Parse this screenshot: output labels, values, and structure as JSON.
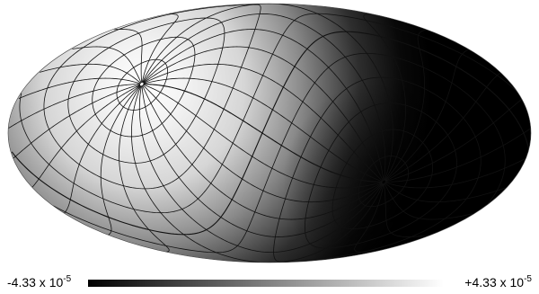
{
  "projection": "mollweide",
  "map": {
    "field": "dipole",
    "colormap": "grayscale",
    "min_color": "#000000",
    "max_color": "#ffffff",
    "graticule": true
  },
  "colorbar": {
    "min": {
      "sign": "-",
      "mantissa": "4.33",
      "times": " x 10",
      "exponent": "-5"
    },
    "max": {
      "sign": "+",
      "mantissa": "4.33",
      "times": " x 10",
      "exponent": "-5"
    }
  }
}
